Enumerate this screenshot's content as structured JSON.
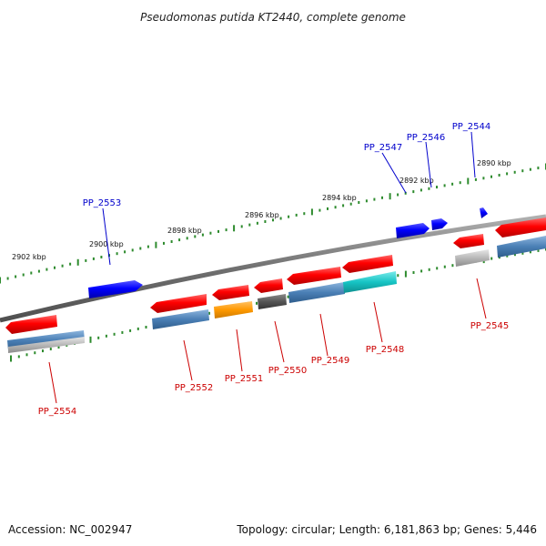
{
  "title": "Pseudomonas putida KT2440, complete genome",
  "footer": {
    "accession": "Accession: NC_002947",
    "summary": "Topology: circular; Length: 6,181,863 bp; Genes: 5,446"
  },
  "colors": {
    "backbone": "#808080",
    "tick": "#2e8b2e",
    "forward_gene": "#0000ff",
    "reverse_gene": "#ff0000",
    "forward_label": "#0000cc",
    "reverse_label": "#cc0000"
  },
  "position_labels": [
    "2902 kbp",
    "2900 kbp",
    "2898 kbp",
    "2896 kbp",
    "2894 kbp",
    "2892 kbp",
    "2890 kbp"
  ],
  "genes_forward": [
    "PP_2553",
    "PP_2547",
    "PP_2546",
    "PP_2544"
  ],
  "genes_reverse": [
    "PP_2554",
    "PP_2552",
    "PP_2551",
    "PP_2550",
    "PP_2549",
    "PP_2548",
    "PP_2545"
  ],
  "feature_colors": [
    "#4a7fb5",
    "#ff9900",
    "#555555",
    "#16c4c4",
    "#b0b0b0"
  ]
}
